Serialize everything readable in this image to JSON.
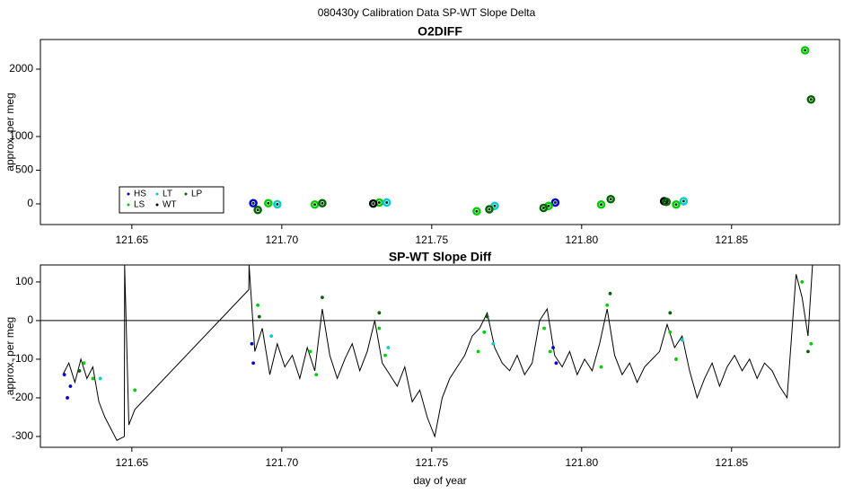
{
  "title": "080430y   Calibration Data SP-WT Slope Delta",
  "chart_data": [
    {
      "type": "scatter",
      "title": "O2DIFF",
      "y_label": "approx. per meg",
      "xlim": [
        121.6195,
        121.886
      ],
      "ylim": [
        -307,
        2440
      ],
      "xticks": [
        121.65,
        {
          "value": 121.7,
          "label": "121.70"
        },
        121.75,
        {
          "value": 121.8,
          "label": "121.80"
        },
        121.85
      ],
      "yticks": [
        0,
        500,
        1000,
        2000
      ],
      "legend": "bottomleft",
      "series": [
        {
          "name": "HS",
          "color": "#0000cc",
          "x": [
            121.6905,
            121.7912
          ],
          "values": [
            10,
            20
          ]
        },
        {
          "name": "LS",
          "color": "#00cc00",
          "x": [
            121.6955,
            121.711,
            121.7325,
            121.765,
            121.789,
            121.8065,
            121.8315,
            121.8745
          ],
          "values": [
            10,
            -10,
            20,
            -110,
            -30,
            -10,
            -10,
            2280
          ]
        },
        {
          "name": "LT",
          "color": "#00cccc",
          "x": [
            121.6985,
            121.735,
            121.771,
            121.834
          ],
          "values": [
            -5,
            20,
            -30,
            40
          ]
        },
        {
          "name": "WT",
          "color": "#000000",
          "x": [
            121.7305,
            121.8275
          ],
          "values": [
            5,
            40
          ]
        },
        {
          "name": "LP",
          "color": "#006400",
          "x": [
            121.692,
            121.7135,
            121.7692,
            121.7873,
            121.8097,
            121.8283,
            121.8765
          ],
          "values": [
            -90,
            10,
            -80,
            -60,
            70,
            30,
            1550
          ]
        }
      ]
    },
    {
      "type": "line",
      "title": "SP-WT Slope Diff",
      "y_label": "approx. per meg",
      "x_label": "day of year",
      "xlim": [
        121.6195,
        121.886
      ],
      "ylim": [
        -328,
        144
      ],
      "xticks": [
        121.65,
        {
          "value": 121.7,
          "label": "121.70"
        },
        121.75,
        {
          "value": 121.8,
          "label": "121.80"
        },
        121.85
      ],
      "yticks": [
        -300,
        -200,
        -100,
        0,
        100
      ],
      "hline": 0,
      "series": [
        {
          "mode": "line",
          "color": "#000000",
          "x": [
            121.627,
            121.629,
            121.631,
            121.633,
            121.635,
            121.637,
            121.639,
            121.641,
            121.643,
            121.645,
            121.6475,
            121.6476,
            121.649,
            121.651,
            121.689,
            121.6891,
            121.691,
            121.6935,
            121.696,
            121.6985,
            121.701,
            121.7035,
            121.706,
            121.7085,
            121.711,
            121.7135,
            121.716,
            121.7185,
            121.721,
            121.7235,
            121.726,
            121.7285,
            121.731,
            121.7335,
            121.736,
            121.7385,
            121.741,
            121.7435,
            121.746,
            121.7485,
            121.751,
            121.7535,
            121.756,
            121.7585,
            121.761,
            121.7635,
            121.766,
            121.7685,
            121.771,
            121.7735,
            121.776,
            121.7785,
            121.781,
            121.7835,
            121.786,
            121.7885,
            121.791,
            121.7935,
            121.796,
            121.7985,
            121.801,
            121.8035,
            121.806,
            121.8085,
            121.811,
            121.8135,
            121.816,
            121.8185,
            121.821,
            121.8235,
            121.826,
            121.8285,
            121.831,
            121.8335,
            121.836,
            121.8385,
            121.841,
            121.8435,
            121.846,
            121.8485,
            121.851,
            121.8535,
            121.856,
            121.8585,
            121.861,
            121.8635,
            121.866,
            121.8685,
            121.8715,
            121.8735,
            121.8755,
            121.877
          ],
          "values": [
            -140,
            -110,
            -160,
            -100,
            -150,
            -120,
            -210,
            -250,
            -280,
            -310,
            -300,
            144,
            -270,
            -230,
            80,
            144,
            -80,
            -20,
            -140,
            -60,
            -120,
            -90,
            -150,
            -70,
            -130,
            30,
            -90,
            -150,
            -100,
            -60,
            -130,
            -80,
            0,
            -110,
            -140,
            -170,
            -120,
            -210,
            -180,
            -250,
            -300,
            -200,
            -150,
            -120,
            -90,
            -40,
            -20,
            20,
            -70,
            -110,
            -130,
            -90,
            -140,
            -110,
            0,
            30,
            -90,
            -120,
            -80,
            -140,
            -100,
            -130,
            -60,
            30,
            -90,
            -140,
            -110,
            -160,
            -120,
            -100,
            -80,
            -10,
            -70,
            -40,
            -130,
            -200,
            -150,
            -110,
            -170,
            -120,
            -90,
            -130,
            -100,
            -150,
            -110,
            -130,
            -170,
            -200,
            120,
            60,
            -40,
            144
          ]
        },
        {
          "mode": "points",
          "color": "#0000cc",
          "x": [
            121.6275,
            121.6285,
            121.6295,
            121.69,
            121.6905,
            121.7905,
            121.7915
          ],
          "values": [
            -140,
            -200,
            -170,
            -60,
            -110,
            -70,
            -110
          ]
        },
        {
          "mode": "points",
          "color": "#00cc00",
          "x": [
            121.634,
            121.637,
            121.651,
            121.692,
            121.7095,
            121.7115,
            121.7325,
            121.7345,
            121.7655,
            121.7675,
            121.7875,
            121.7895,
            121.8065,
            121.8085,
            121.8295,
            121.8315,
            121.8735,
            121.8765
          ],
          "values": [
            -110,
            -150,
            -180,
            40,
            -80,
            -140,
            -20,
            -90,
            -80,
            -30,
            -20,
            -80,
            -120,
            40,
            -30,
            -100,
            100,
            -60
          ]
        },
        {
          "mode": "points",
          "color": "#00cccc",
          "x": [
            121.6395,
            121.6965,
            121.7355,
            121.7705,
            121.8335
          ],
          "values": [
            -150,
            -40,
            -70,
            -60,
            -50
          ]
        },
        {
          "mode": "points",
          "color": "#006400",
          "x": [
            121.6325,
            121.6925,
            121.7135,
            121.7325,
            121.7685,
            121.8095,
            121.8295,
            121.8755
          ],
          "values": [
            -130,
            10,
            60,
            20,
            10,
            70,
            20,
            -80
          ]
        }
      ]
    }
  ]
}
